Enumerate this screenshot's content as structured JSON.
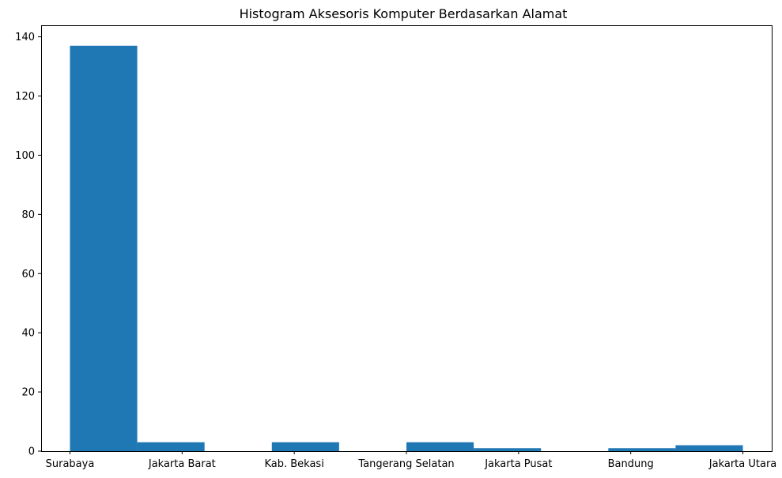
{
  "chart_data": {
    "type": "bar",
    "title": "Histogram Aksesoris Komputer Berdasarkan Alamat",
    "xlabel": "",
    "ylabel": "",
    "x_range": [
      -0.3,
      7.3
    ],
    "ylim": [
      0,
      143.9
    ],
    "y_ticks": [
      0,
      20,
      40,
      60,
      80,
      100,
      120,
      140
    ],
    "x_tick_labels": [
      {
        "label": "Surabaya",
        "pos": 0
      },
      {
        "label": "Jakarta Barat",
        "pos": 1.1667
      },
      {
        "label": "Kab. Bekasi",
        "pos": 2.3333
      },
      {
        "label": "Tangerang Selatan",
        "pos": 3.5
      },
      {
        "label": "Jakarta Pusat",
        "pos": 4.6667
      },
      {
        "label": "Bandung",
        "pos": 5.8333
      },
      {
        "label": "Jakarta Utara",
        "pos": 7
      }
    ],
    "bins": [
      {
        "start": 0.0,
        "end": 0.7,
        "value": 137
      },
      {
        "start": 0.7,
        "end": 1.4,
        "value": 3
      },
      {
        "start": 1.4,
        "end": 2.1,
        "value": 0
      },
      {
        "start": 2.1,
        "end": 2.8,
        "value": 3
      },
      {
        "start": 2.8,
        "end": 3.5,
        "value": 0
      },
      {
        "start": 3.5,
        "end": 4.2,
        "value": 3
      },
      {
        "start": 4.2,
        "end": 4.9,
        "value": 1
      },
      {
        "start": 4.9,
        "end": 5.6,
        "value": 0
      },
      {
        "start": 5.6,
        "end": 6.3,
        "value": 1
      },
      {
        "start": 6.3,
        "end": 7.0,
        "value": 2
      }
    ],
    "bar_color": "#1f77b4",
    "grid": false,
    "legend": "none"
  }
}
